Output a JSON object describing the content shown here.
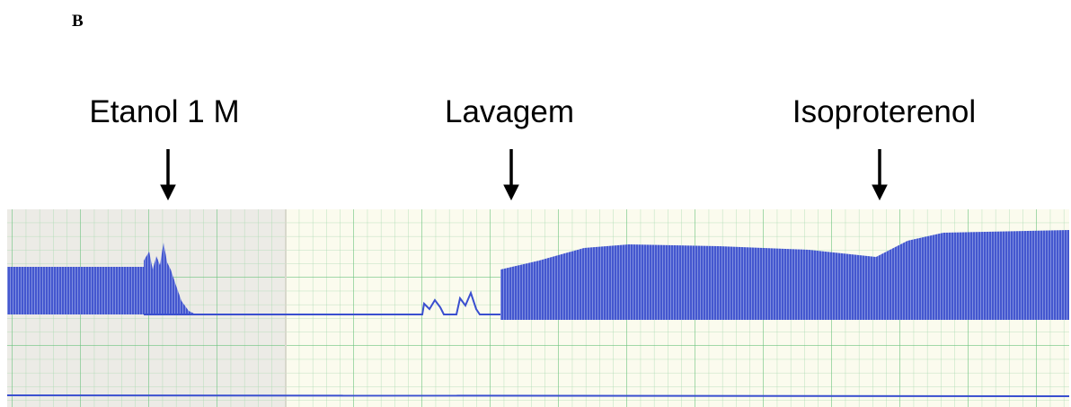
{
  "panel_label": "B",
  "annotations": [
    "Etanol 1 M",
    "Lavagem",
    "Isoproterenol"
  ]
}
